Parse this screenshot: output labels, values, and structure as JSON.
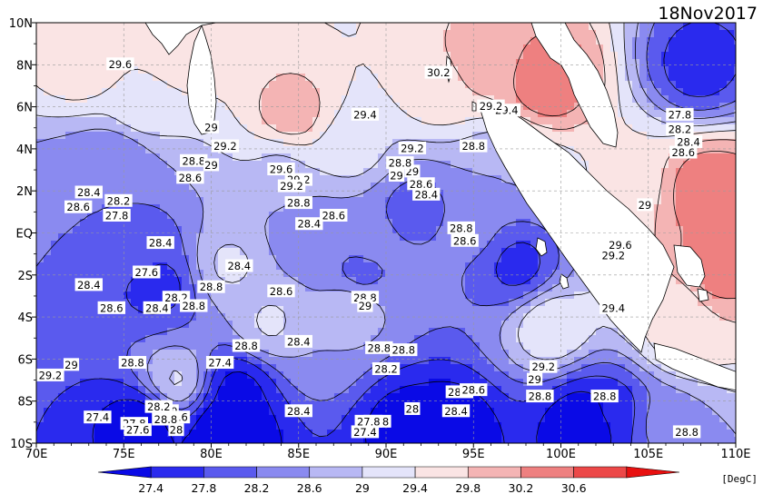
{
  "date_label": "18Nov2017",
  "units_label": "[DegC]",
  "axes": {
    "x_ticks": [
      "70E",
      "75E",
      "80E",
      "85E",
      "90E",
      "95E",
      "100E",
      "105E",
      "110E"
    ],
    "y_ticks": [
      "10N",
      "8N",
      "6N",
      "4N",
      "2N",
      "EQ",
      "2S",
      "4S",
      "6S",
      "8S",
      "10S"
    ]
  },
  "colorbar": {
    "levels": [
      "27.4",
      "27.8",
      "28.2",
      "28.6",
      "29",
      "29.4",
      "29.8",
      "30.2",
      "30.6"
    ],
    "colors": [
      "#0a0ae6",
      "#2a2aee",
      "#5a5aee",
      "#8a8af0",
      "#b8b8f4",
      "#e4e4fa",
      "#fae4e4",
      "#f4b4b4",
      "#ee8080",
      "#ec4848",
      "#e81010"
    ]
  },
  "contour_labels": [
    "29.6",
    "29",
    "29.2",
    "28.8",
    "28.6",
    "29",
    "28.4",
    "28.6",
    "28.2",
    "27.8",
    "29.6",
    "29.2",
    "29.4",
    "29.2",
    "29",
    "28.6",
    "28.4",
    "29.4",
    "28.8",
    "28.8",
    "28.6",
    "28.4",
    "29.2",
    "28.8",
    "29",
    "28.4",
    "28.4",
    "27.6",
    "28.6",
    "28.4",
    "28.2",
    "28.8",
    "28.8",
    "28.6",
    "28.8",
    "29",
    "28.8",
    "28.8",
    "28.4",
    "28.8",
    "28.2",
    "28.6",
    "28.4",
    "29.2",
    "29",
    "28.8",
    "27.8",
    "29",
    "29.6",
    "29.2",
    "29.4",
    "27.8",
    "28.2",
    "28.4",
    "28.6",
    "28.8",
    "28.6",
    "28.4",
    "28.8",
    "29",
    "28.6",
    "28.8",
    "30.2",
    "29.2",
    "27.4",
    "28.4",
    "28",
    "27.8",
    "27.4",
    "27.4",
    "27.8",
    "27.6",
    "28.6",
    "28.8",
    "28.2",
    "28",
    "29",
    "28.8",
    "29.2"
  ],
  "chart_data": {
    "type": "heatmap",
    "variable": "SST",
    "units": "[DegC]",
    "date": "18Nov2017",
    "x_range": [
      70,
      110
    ],
    "y_range": [
      -10,
      10
    ],
    "levels": [
      27.4,
      27.8,
      28.2,
      28.6,
      29,
      29.4,
      29.8,
      30.2,
      30.6
    ],
    "features": [
      {
        "lon": 95.5,
        "lat": 8.2,
        "value": 30.0
      },
      {
        "lon": 99.2,
        "lat": 7.2,
        "value": 30.6
      },
      {
        "lon": 108.5,
        "lat": 2.0,
        "value": 30.6
      },
      {
        "lon": 108.7,
        "lat": -1.7,
        "value": 30.6
      },
      {
        "lon": 84.6,
        "lat": 5.6,
        "value": 30.1
      },
      {
        "lon": 107.8,
        "lat": 7.9,
        "value": 27.6
      },
      {
        "lon": 93.0,
        "lat": 7.0,
        "value": 29.7
      },
      {
        "lon": 76.0,
        "lat": 6.0,
        "value": 29.3
      },
      {
        "lon": 78.5,
        "lat": 9.0,
        "value": 29.8
      },
      {
        "lon": 72.7,
        "lat": 8.0,
        "value": 29.7
      },
      {
        "lon": 88.0,
        "lat": 4.0,
        "value": 29.2
      },
      {
        "lon": 103.5,
        "lat": 2.5,
        "value": 29.5
      },
      {
        "lon": 106.5,
        "lat": -3.5,
        "value": 29.5
      },
      {
        "lon": 107.0,
        "lat": -4.8,
        "value": 29.7
      },
      {
        "lon": 99.5,
        "lat": -4.5,
        "value": 29.4
      },
      {
        "lon": 81.0,
        "lat": -1.5,
        "value": 29.1
      },
      {
        "lon": 83.5,
        "lat": -4.3,
        "value": 29.1
      },
      {
        "lon": 88.0,
        "lat": -3.5,
        "value": 29.0
      },
      {
        "lon": 78.0,
        "lat": -7.0,
        "value": 29.1
      },
      {
        "lon": 73.0,
        "lat": 2.0,
        "value": 28.2
      },
      {
        "lon": 76.0,
        "lat": -1.0,
        "value": 27.9
      },
      {
        "lon": 77.0,
        "lat": -2.5,
        "value": 27.6
      },
      {
        "lon": 74.5,
        "lat": 3.5,
        "value": 28.2
      },
      {
        "lon": 85.5,
        "lat": 0.0,
        "value": 28.2
      },
      {
        "lon": 89.0,
        "lat": -0.5,
        "value": 28.3
      },
      {
        "lon": 91.6,
        "lat": 1.2,
        "value": 28.0
      },
      {
        "lon": 88.5,
        "lat": -2.0,
        "value": 28.0
      },
      {
        "lon": 95.0,
        "lat": 0.0,
        "value": 28.3
      },
      {
        "lon": 97.5,
        "lat": -1.5,
        "value": 27.6
      },
      {
        "lon": 96.5,
        "lat": 3.0,
        "value": 28.6
      },
      {
        "lon": 81.5,
        "lat": -7.5,
        "value": 27.2
      },
      {
        "lon": 81.0,
        "lat": -9.3,
        "value": 26.8
      },
      {
        "lon": 76.0,
        "lat": -9.0,
        "value": 27.1
      },
      {
        "lon": 91.0,
        "lat": -9.0,
        "value": 27.2
      },
      {
        "lon": 93.5,
        "lat": -9.3,
        "value": 27.0
      },
      {
        "lon": 101.5,
        "lat": -9.0,
        "value": 26.9
      },
      {
        "lon": 103.0,
        "lat": -8.5,
        "value": 27.6
      },
      {
        "lon": 106.0,
        "lat": -9.0,
        "value": 28.4
      },
      {
        "lon": 84.0,
        "lat": 3.0,
        "value": 28.9
      },
      {
        "lon": 86.0,
        "lat": -5.5,
        "value": 28.6
      }
    ]
  }
}
